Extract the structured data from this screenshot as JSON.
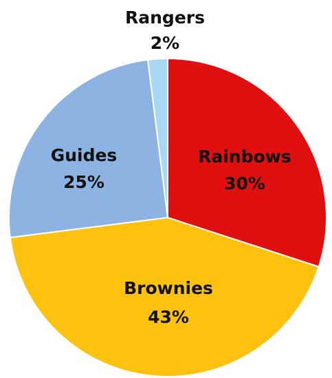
{
  "chart_data": {
    "type": "pie",
    "title": "",
    "start": "top",
    "direction": "clockwise",
    "slices": [
      {
        "label": "Rainbows",
        "value": 30,
        "display": "30%",
        "color": "#e01010"
      },
      {
        "label": "Brownies",
        "value": 43,
        "display": "43%",
        "color": "#fdc210"
      },
      {
        "label": "Guides",
        "value": 25,
        "display": "25%",
        "color": "#8db3e2"
      },
      {
        "label": "Rangers",
        "value": 2,
        "display": "2%",
        "color": "#a9d8f5"
      }
    ],
    "legend": "none",
    "labels": "category and percent"
  }
}
